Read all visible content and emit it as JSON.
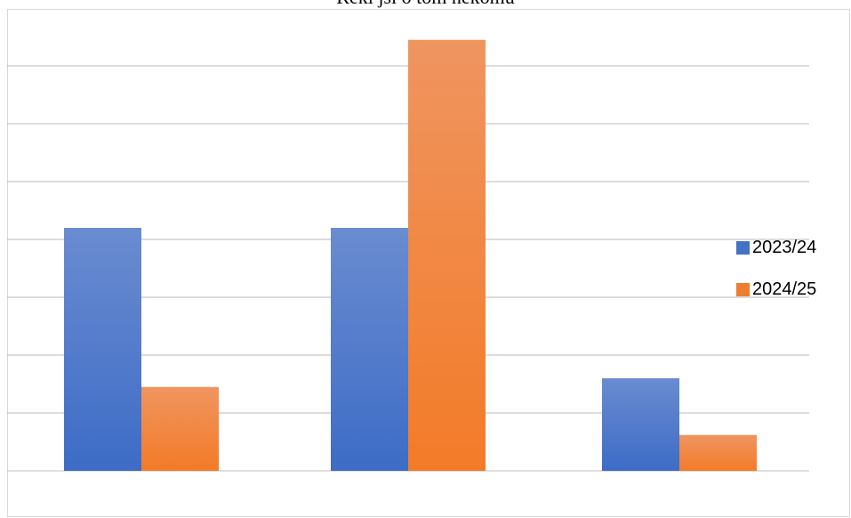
{
  "chart_data": {
    "type": "bar",
    "title": "Řekl jsi o tom někomu",
    "categories": [
      "",
      "",
      ""
    ],
    "ylim": [
      0,
      8
    ],
    "grid": true,
    "legend": "right",
    "series": [
      {
        "name": "2023/24",
        "color": "#4472c4",
        "values": [
          4.2,
          4.2,
          1.6
        ]
      },
      {
        "name": "2024/25",
        "color": "#ed7d31",
        "values": [
          1.45,
          7.45,
          0.62
        ]
      }
    ]
  }
}
